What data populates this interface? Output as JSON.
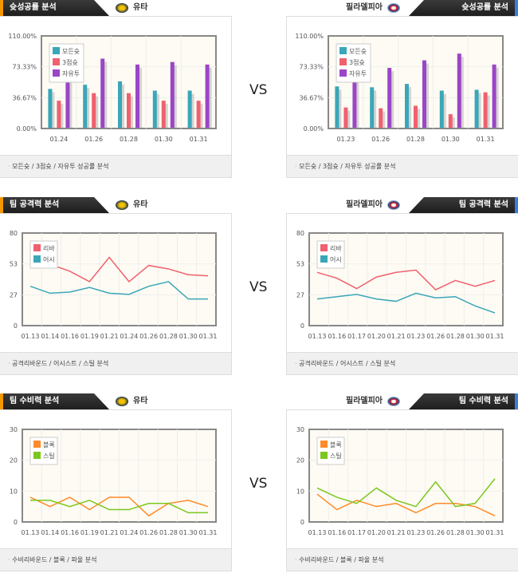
{
  "vs_label": "VS",
  "teams": {
    "left": "유타",
    "right": "필라델피아"
  },
  "colors": {
    "teal": "#3aa6b9",
    "red": "#f0606e",
    "purple": "#9b45c8",
    "orange": "#ff8a2a",
    "green": "#7cc71e",
    "left_accent": "#f39800",
    "right_accent": "#3b7ddd"
  },
  "sections": [
    {
      "title": "슛성공률 분석",
      "footer": "모든슛 / 3점슛 / 자유투 성공률 분석"
    },
    {
      "title": "팀 공격력 분석",
      "footer": "공격리바운드 / 어시스트 / 스틸 분석"
    },
    {
      "title": "팀 수비력 분석",
      "footer": "수비리바운드 / 블록 / 파울 분석"
    }
  ],
  "chart_data": [
    {
      "id": "shoot-left",
      "type": "bar",
      "ylim": [
        0,
        110
      ],
      "yticks": [
        "0.00%",
        "36.67%",
        "73.33%",
        "110.00%"
      ],
      "ytick_values": [
        0,
        36.67,
        73.33,
        110
      ],
      "categories": [
        "01.24",
        "01.26",
        "01.28",
        "01.30",
        "01.31"
      ],
      "series": [
        {
          "name": "모든슛",
          "color": "#3aa6b9",
          "values": [
            47,
            52,
            56,
            45,
            45
          ]
        },
        {
          "name": "3점슛",
          "color": "#f0606e",
          "values": [
            33,
            42,
            42,
            33,
            33
          ]
        },
        {
          "name": "자유투",
          "color": "#9b45c8",
          "values": [
            60,
            83,
            76,
            79,
            76
          ]
        }
      ]
    },
    {
      "id": "shoot-right",
      "type": "bar",
      "ylim": [
        0,
        110
      ],
      "yticks": [
        "0.00%",
        "36.67%",
        "73.33%",
        "110.00%"
      ],
      "ytick_values": [
        0,
        36.67,
        73.33,
        110
      ],
      "categories": [
        "01.23",
        "01.26",
        "01.28",
        "01.30",
        "01.31"
      ],
      "series": [
        {
          "name": "모든슛",
          "color": "#3aa6b9",
          "values": [
            50,
            49,
            53,
            45,
            46
          ]
        },
        {
          "name": "3점슛",
          "color": "#f0606e",
          "values": [
            25,
            24,
            27,
            17,
            43
          ]
        },
        {
          "name": "자유투",
          "color": "#9b45c8",
          "values": [
            60,
            72,
            81,
            89,
            76
          ]
        }
      ]
    },
    {
      "id": "off-left",
      "type": "line",
      "ylim": [
        0,
        80
      ],
      "yticks": [
        "0",
        "27",
        "53",
        "80"
      ],
      "ytick_values": [
        0,
        26.67,
        53.33,
        80
      ],
      "categories": [
        "01.13",
        "01.14",
        "01.16",
        "01.19",
        "01.21",
        "01.24",
        "01.26",
        "01.28",
        "01.30",
        "01.31"
      ],
      "series": [
        {
          "name": "리바",
          "color": "#f0606e",
          "values": [
            56,
            53,
            47,
            38,
            59,
            38,
            52,
            49,
            44,
            43
          ]
        },
        {
          "name": "어시",
          "color": "#3aa6b9",
          "values": [
            34,
            28,
            29,
            33,
            28,
            27,
            34,
            38,
            23,
            23
          ]
        }
      ]
    },
    {
      "id": "off-right",
      "type": "line",
      "ylim": [
        0,
        80
      ],
      "yticks": [
        "0",
        "27",
        "53",
        "80"
      ],
      "ytick_values": [
        0,
        26.67,
        53.33,
        80
      ],
      "categories": [
        "01.13",
        "01.16",
        "01.17",
        "01.20",
        "01.21",
        "01.23",
        "01.26",
        "01.28",
        "01.30",
        "01.31"
      ],
      "series": [
        {
          "name": "리바",
          "color": "#f0606e",
          "values": [
            46,
            41,
            32,
            42,
            46,
            48,
            31,
            39,
            34,
            39
          ]
        },
        {
          "name": "어시",
          "color": "#3aa6b9",
          "values": [
            23,
            25,
            27,
            23,
            21,
            28,
            24,
            25,
            17,
            11
          ]
        }
      ]
    },
    {
      "id": "def-left",
      "type": "line",
      "ylim": [
        0,
        30
      ],
      "yticks": [
        "0",
        "10",
        "20",
        "30"
      ],
      "ytick_values": [
        0,
        10,
        20,
        30
      ],
      "categories": [
        "01.13",
        "01.14",
        "01.16",
        "01.19",
        "01.21",
        "01.24",
        "01.26",
        "01.28",
        "01.30",
        "01.31"
      ],
      "series": [
        {
          "name": "블록",
          "color": "#ff8a2a",
          "values": [
            8,
            5,
            8,
            4,
            8,
            8,
            2,
            6,
            7,
            5
          ]
        },
        {
          "name": "스틸",
          "color": "#7cc71e",
          "values": [
            7,
            7,
            5,
            7,
            4,
            4,
            6,
            6,
            3,
            3
          ]
        }
      ]
    },
    {
      "id": "def-right",
      "type": "line",
      "ylim": [
        0,
        30
      ],
      "yticks": [
        "0",
        "10",
        "20",
        "30"
      ],
      "ytick_values": [
        0,
        10,
        20,
        30
      ],
      "categories": [
        "01.13",
        "01.16",
        "01.17",
        "01.20",
        "01.21",
        "01.23",
        "01.26",
        "01.28",
        "01.30",
        "01.31"
      ],
      "series": [
        {
          "name": "블록",
          "color": "#ff8a2a",
          "values": [
            9,
            4,
            7,
            5,
            6,
            3,
            6,
            6,
            5,
            2
          ]
        },
        {
          "name": "스틸",
          "color": "#7cc71e",
          "values": [
            11,
            8,
            6,
            11,
            7,
            5,
            13,
            5,
            6,
            14
          ]
        }
      ]
    }
  ]
}
